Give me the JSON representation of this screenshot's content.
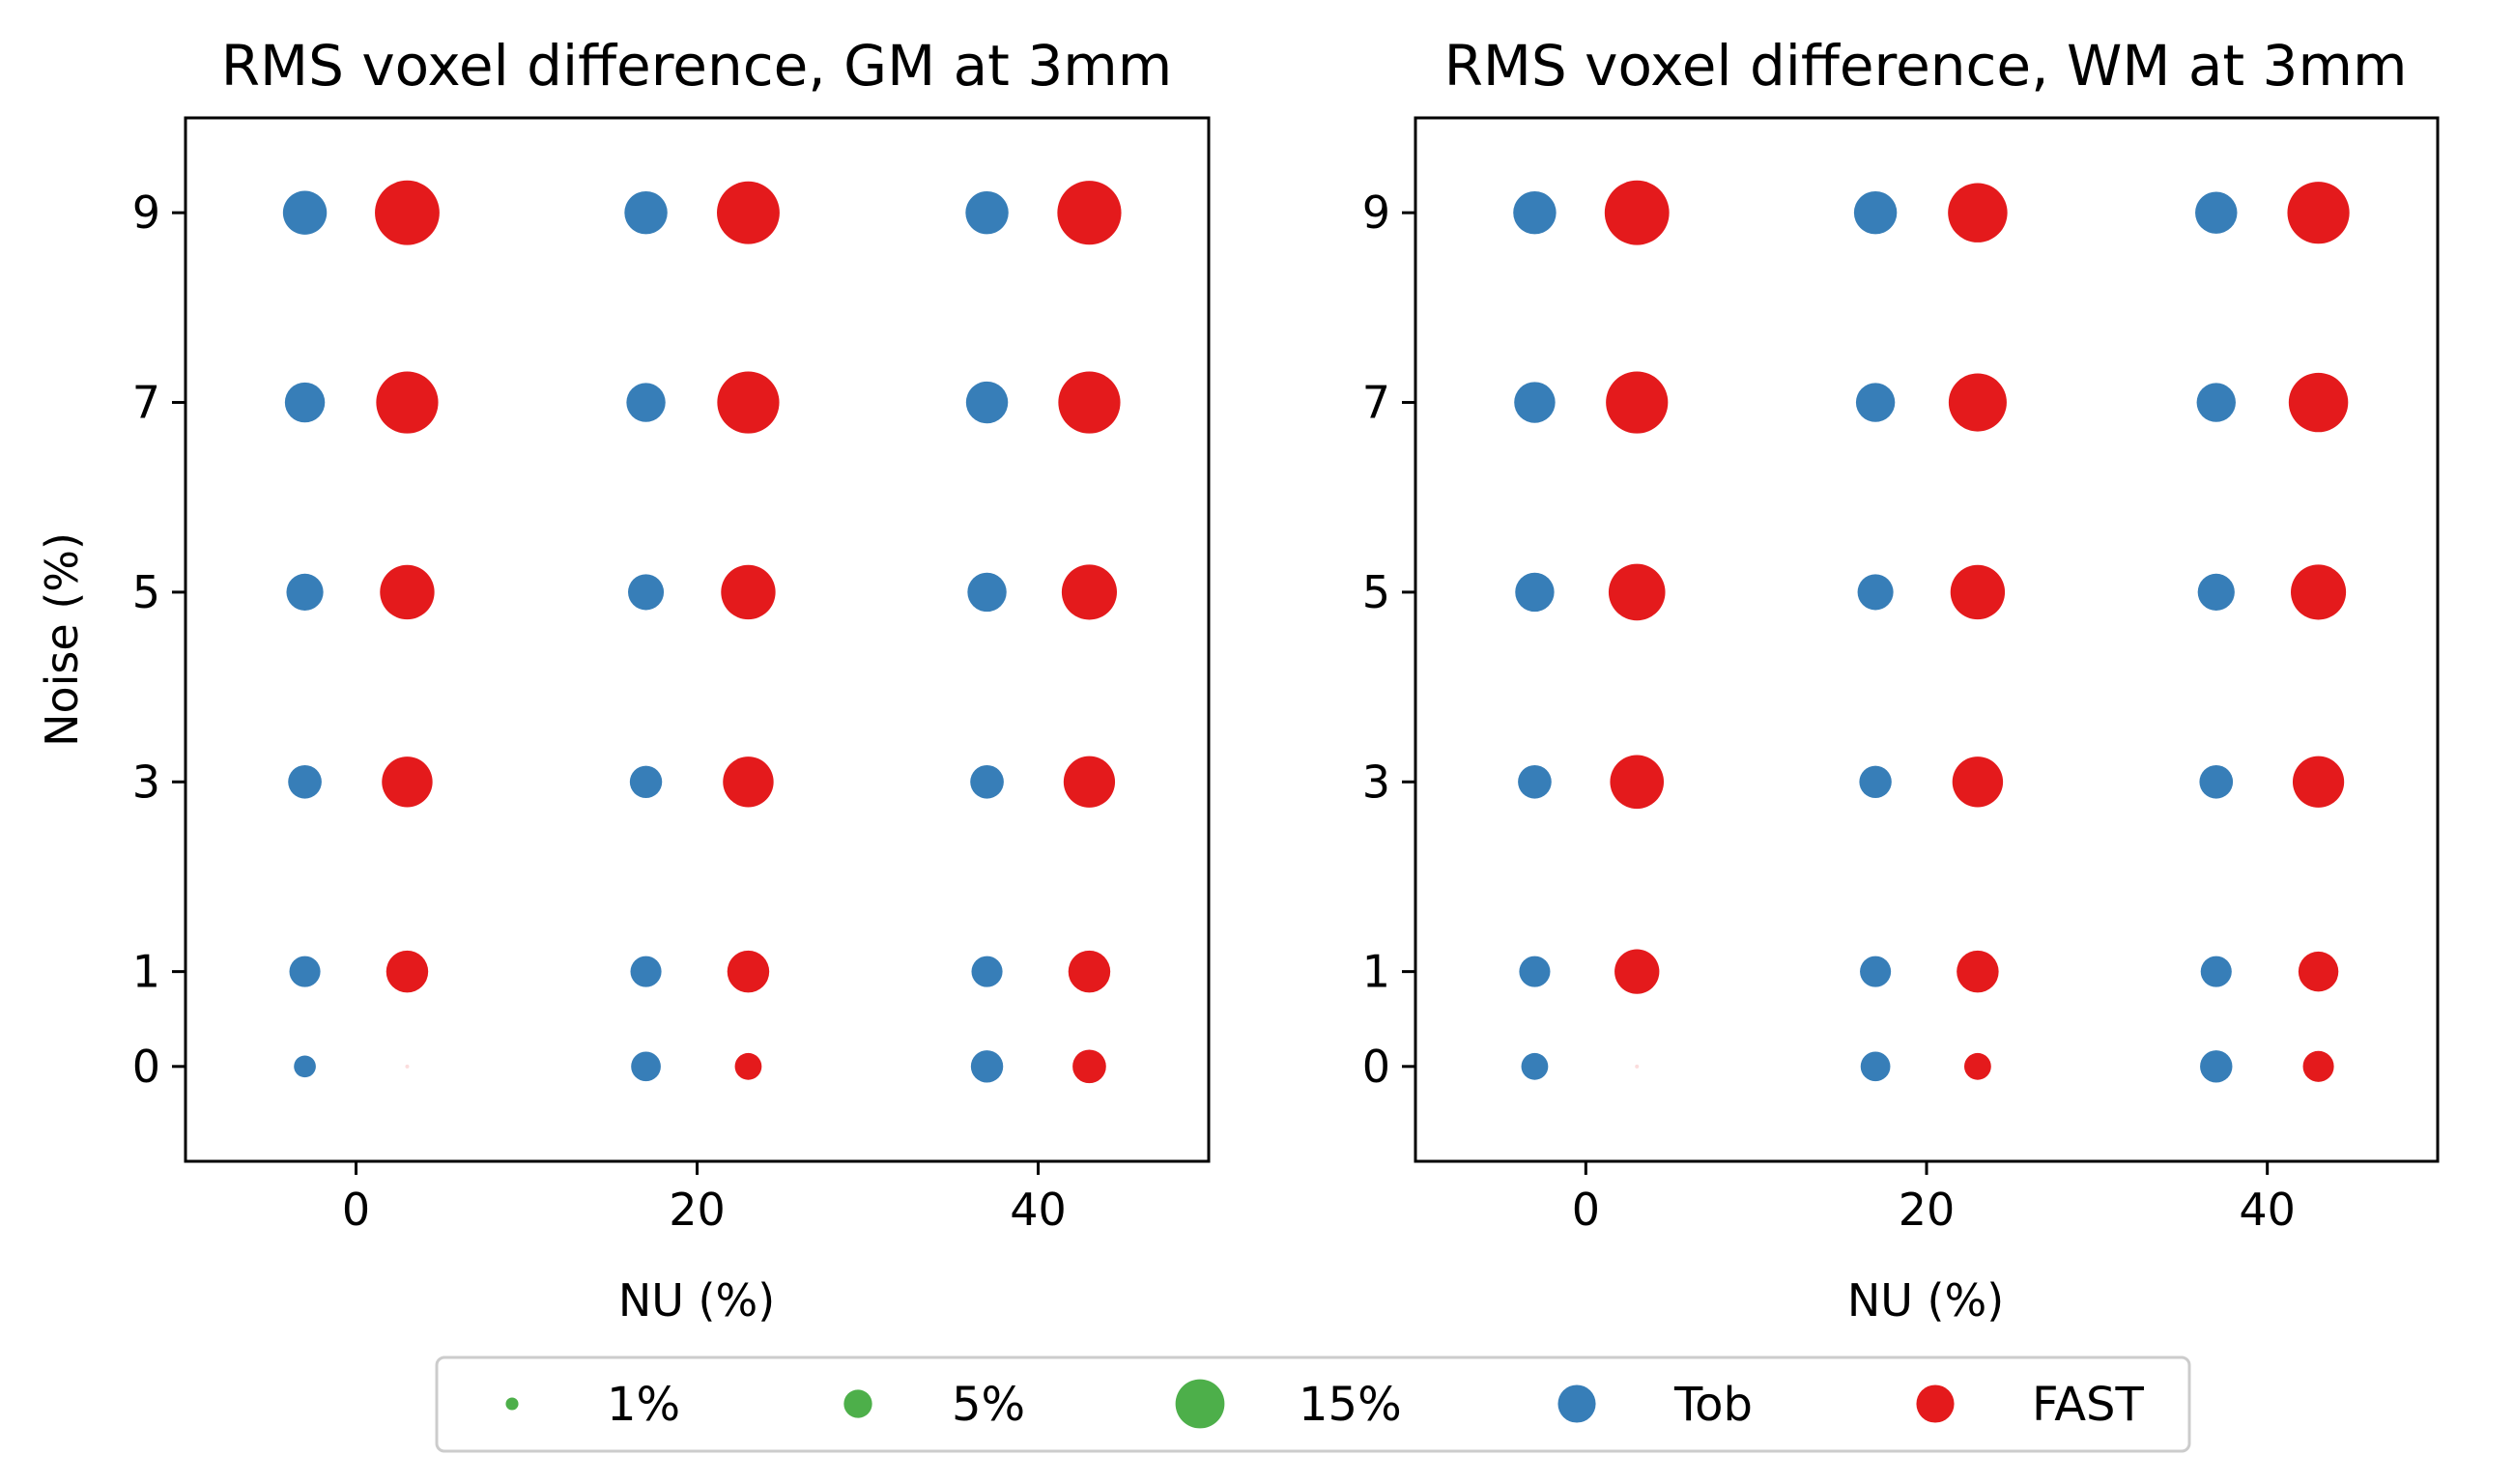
{
  "chart_data": [
    {
      "type": "scatter",
      "title": "RMS voxel difference, GM at 3mm",
      "xlabel": "NU (%)",
      "ylabel": "Noise (%)",
      "xlim": [
        -10,
        50
      ],
      "ylim": [
        -1,
        10
      ],
      "xticks": [
        0,
        20,
        40
      ],
      "yticks": [
        0,
        1,
        3,
        5,
        7,
        9
      ],
      "marker_size_unit": "RMS voxel difference (%)",
      "series": [
        {
          "name": "Tob",
          "color": "#377eb8",
          "points": [
            {
              "x": -3,
              "y": 0,
              "size": 3
            },
            {
              "x": -3,
              "y": 1,
              "size": 6
            },
            {
              "x": -3,
              "y": 3,
              "size": 7
            },
            {
              "x": -3,
              "y": 5,
              "size": 8.5
            },
            {
              "x": -3,
              "y": 7,
              "size": 10
            },
            {
              "x": -3,
              "y": 9,
              "size": 12
            },
            {
              "x": 17,
              "y": 0,
              "size": 5.5
            },
            {
              "x": 17,
              "y": 1,
              "size": 6
            },
            {
              "x": 17,
              "y": 3,
              "size": 6.5
            },
            {
              "x": 17,
              "y": 5,
              "size": 8
            },
            {
              "x": 17,
              "y": 7,
              "size": 9.5
            },
            {
              "x": 17,
              "y": 9,
              "size": 11.5
            },
            {
              "x": 37,
              "y": 0,
              "size": 6.5
            },
            {
              "x": 37,
              "y": 1,
              "size": 6
            },
            {
              "x": 37,
              "y": 3,
              "size": 7
            },
            {
              "x": 37,
              "y": 5,
              "size": 9.5
            },
            {
              "x": 37,
              "y": 7,
              "size": 11
            },
            {
              "x": 37,
              "y": 9,
              "size": 11.5
            }
          ]
        },
        {
          "name": "FAST",
          "color": "#e41a1c",
          "points": [
            {
              "x": 3,
              "y": 0,
              "size": 0.1
            },
            {
              "x": 3,
              "y": 1,
              "size": 11
            },
            {
              "x": 3,
              "y": 3,
              "size": 16
            },
            {
              "x": 3,
              "y": 5,
              "size": 18.5
            },
            {
              "x": 3,
              "y": 7,
              "size": 24
            },
            {
              "x": 3,
              "y": 9,
              "size": 26
            },
            {
              "x": 23,
              "y": 0,
              "size": 4.5
            },
            {
              "x": 23,
              "y": 1,
              "size": 11
            },
            {
              "x": 23,
              "y": 3,
              "size": 16
            },
            {
              "x": 23,
              "y": 5,
              "size": 18.5
            },
            {
              "x": 23,
              "y": 7,
              "size": 24
            },
            {
              "x": 23,
              "y": 9,
              "size": 24.5
            },
            {
              "x": 43,
              "y": 0,
              "size": 7
            },
            {
              "x": 43,
              "y": 1,
              "size": 11
            },
            {
              "x": 43,
              "y": 3,
              "size": 16.5
            },
            {
              "x": 43,
              "y": 5,
              "size": 19
            },
            {
              "x": 43,
              "y": 7,
              "size": 24
            },
            {
              "x": 43,
              "y": 9,
              "size": 25.5
            }
          ]
        }
      ]
    },
    {
      "type": "scatter",
      "title": "RMS voxel difference, WM at 3mm",
      "xlabel": "NU (%)",
      "ylabel": "",
      "xlim": [
        -10,
        50
      ],
      "ylim": [
        -1,
        10
      ],
      "xticks": [
        0,
        20,
        40
      ],
      "yticks": [
        0,
        1,
        3,
        5,
        7,
        9
      ],
      "marker_size_unit": "RMS voxel difference (%)",
      "series": [
        {
          "name": "Tob",
          "color": "#377eb8",
          "points": [
            {
              "x": -3,
              "y": 0,
              "size": 4.5
            },
            {
              "x": -3,
              "y": 1,
              "size": 6
            },
            {
              "x": -3,
              "y": 3,
              "size": 7
            },
            {
              "x": -3,
              "y": 5,
              "size": 9.5
            },
            {
              "x": -3,
              "y": 7,
              "size": 10.5
            },
            {
              "x": -3,
              "y": 9,
              "size": 11.5
            }
          ]
        },
        {
          "name": "FAST",
          "color": "#e41a1c",
          "points": [
            {
              "x": 3,
              "y": 0,
              "size": 0.1
            },
            {
              "x": 3,
              "y": 1,
              "size": 12.5
            },
            {
              "x": 3,
              "y": 3,
              "size": 18
            },
            {
              "x": 3,
              "y": 5,
              "size": 20
            },
            {
              "x": 3,
              "y": 7,
              "size": 24
            },
            {
              "x": 3,
              "y": 9,
              "size": 26
            }
          ]
        },
        {
          "name": "Tob",
          "color": "#377eb8",
          "points": [
            {
              "x": 17,
              "y": 0,
              "size": 5.5
            },
            {
              "x": 17,
              "y": 1,
              "size": 6
            },
            {
              "x": 17,
              "y": 3,
              "size": 6.5
            },
            {
              "x": 17,
              "y": 5,
              "size": 8
            },
            {
              "x": 17,
              "y": 7,
              "size": 9.5
            },
            {
              "x": 17,
              "y": 9,
              "size": 11.5
            },
            {
              "x": 37,
              "y": 0,
              "size": 6.5
            },
            {
              "x": 37,
              "y": 1,
              "size": 6
            },
            {
              "x": 37,
              "y": 3,
              "size": 7
            },
            {
              "x": 37,
              "y": 5,
              "size": 8.5
            },
            {
              "x": 37,
              "y": 7,
              "size": 9.5
            },
            {
              "x": 37,
              "y": 9,
              "size": 11
            }
          ]
        },
        {
          "name": "FAST",
          "color": "#e41a1c",
          "points": [
            {
              "x": 23,
              "y": 0,
              "size": 4.5
            },
            {
              "x": 23,
              "y": 1,
              "size": 11
            },
            {
              "x": 23,
              "y": 3,
              "size": 16
            },
            {
              "x": 23,
              "y": 5,
              "size": 18.5
            },
            {
              "x": 23,
              "y": 7,
              "size": 21
            },
            {
              "x": 23,
              "y": 9,
              "size": 22
            },
            {
              "x": 43,
              "y": 0,
              "size": 6
            },
            {
              "x": 43,
              "y": 1,
              "size": 10
            },
            {
              "x": 43,
              "y": 3,
              "size": 16.5
            },
            {
              "x": 43,
              "y": 5,
              "size": 19
            },
            {
              "x": 43,
              "y": 7,
              "size": 22
            },
            {
              "x": 43,
              "y": 9,
              "size": 24
            }
          ]
        }
      ]
    }
  ],
  "legend": {
    "placement": "bottom-center",
    "size_entries": [
      {
        "label": "1%",
        "size": 1
      },
      {
        "label": "5%",
        "size": 5
      },
      {
        "label": "15%",
        "size": 15
      }
    ],
    "size_color": "#4daf4a",
    "series_entries": [
      {
        "label": "Tob",
        "color": "#377eb8"
      },
      {
        "label": "FAST",
        "color": "#e41a1c"
      }
    ]
  }
}
